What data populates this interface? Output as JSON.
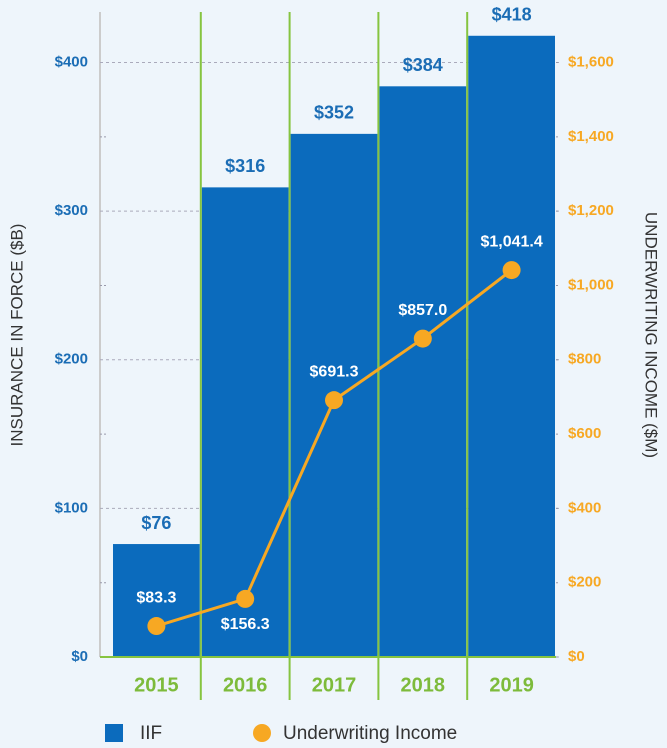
{
  "chart_data": {
    "type": "bar-line",
    "categories": [
      "2015",
      "2016",
      "2017",
      "2018",
      "2019"
    ],
    "series": [
      {
        "name": "IIF",
        "type": "bar",
        "color": "#0b6bbd",
        "axis": "y",
        "values": [
          76,
          316,
          352,
          384,
          418
        ],
        "value_labels": [
          "$76",
          "$316",
          "$352",
          "$384",
          "$418"
        ]
      },
      {
        "name": "Underwriting Income",
        "type": "line",
        "color": "#f7a823",
        "axis": "y2",
        "values": [
          83.3,
          156.3,
          691.3,
          857.0,
          1041.4
        ],
        "value_labels": [
          "$83.3",
          "$156.3",
          "$691.3",
          "$857.0",
          "$1,041.4"
        ]
      }
    ],
    "ylabel": "INSURANCE IN FORCE ($B)",
    "y2label": "UNDERWRITING INCOME ($M)",
    "ylim": [
      0,
      434
    ],
    "yticks": [
      {
        "value": 0,
        "label": "$0"
      },
      {
        "value": 100,
        "label": "$100"
      },
      {
        "value": 200,
        "label": "$200"
      },
      {
        "value": 300,
        "label": "$300"
      },
      {
        "value": 400,
        "label": "$400"
      }
    ],
    "yticks_minor": [
      50,
      150,
      250,
      350
    ],
    "y2lim": [
      0,
      1736
    ],
    "y2ticks": [
      {
        "value": 0,
        "label": "$0"
      },
      {
        "value": 200,
        "label": "$200"
      },
      {
        "value": 400,
        "label": "$400"
      },
      {
        "value": 600,
        "label": "$600"
      },
      {
        "value": 800,
        "label": "$800"
      },
      {
        "value": 1000,
        "label": "$1,000"
      },
      {
        "value": 1200,
        "label": "$1,200"
      },
      {
        "value": 1400,
        "label": "$1,400"
      },
      {
        "value": 1600,
        "label": "$1,600"
      }
    ],
    "grid": true,
    "legend": "bottom"
  }
}
